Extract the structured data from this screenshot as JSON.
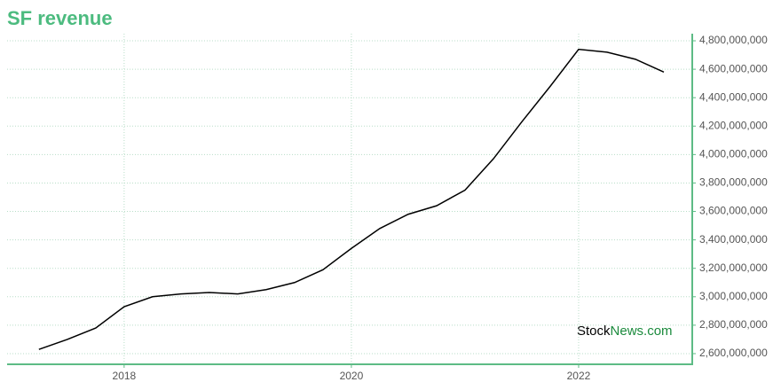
{
  "chart_data": {
    "type": "line",
    "title": "SF revenue",
    "x": [
      2017.25,
      2017.5,
      2017.75,
      2018.0,
      2018.25,
      2018.5,
      2018.75,
      2019.0,
      2019.25,
      2019.5,
      2019.75,
      2020.0,
      2020.25,
      2020.5,
      2020.75,
      2021.0,
      2021.25,
      2021.5,
      2021.75,
      2022.0,
      2022.25,
      2022.5,
      2022.75
    ],
    "series": [
      {
        "name": "Revenue",
        "color": "#000000",
        "values": [
          2630000000,
          2700000000,
          2780000000,
          2930000000,
          3000000000,
          3020000000,
          3030000000,
          3020000000,
          3050000000,
          3100000000,
          3190000000,
          3340000000,
          3480000000,
          3580000000,
          3640000000,
          3750000000,
          3970000000,
          4230000000,
          4480000000,
          4740000000,
          4720000000,
          4670000000,
          4580000000
        ]
      }
    ],
    "xlim": [
      2016.97,
      2023.0
    ],
    "xticks": [
      2018,
      2020,
      2022
    ],
    "ylim": [
      2525000000,
      4850000000
    ],
    "yticks": [
      {
        "value": 2600000000,
        "label": "2,600,000,000"
      },
      {
        "value": 2800000000,
        "label": "2,800,000,000"
      },
      {
        "value": 3000000000,
        "label": "3,000,000,000"
      },
      {
        "value": 3200000000,
        "label": "3,200,000,000"
      },
      {
        "value": 3400000000,
        "label": "3,400,000,000"
      },
      {
        "value": 3600000000,
        "label": "3,600,000,000"
      },
      {
        "value": 3800000000,
        "label": "3,800,000,000"
      },
      {
        "value": 4000000000,
        "label": "4,000,000,000"
      },
      {
        "value": 4200000000,
        "label": "4,200,000,000"
      },
      {
        "value": 4400000000,
        "label": "4,400,000,000"
      },
      {
        "value": 4600000000,
        "label": "4,600,000,000"
      },
      {
        "value": 4800000000,
        "label": "4,800,000,000"
      }
    ],
    "grid": true,
    "axis_color": "#5dbb85",
    "watermark": [
      "Stock",
      "News.com"
    ]
  }
}
